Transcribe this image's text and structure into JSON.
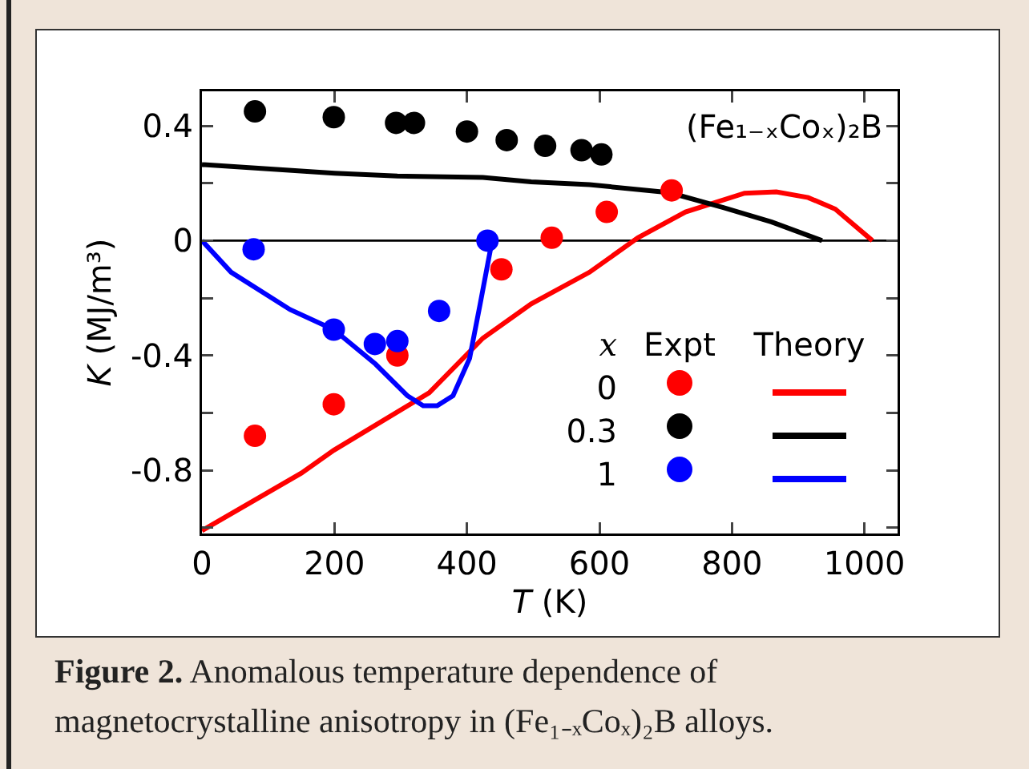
{
  "chart_data": {
    "type": "scatter",
    "xlabel": "T (K)",
    "ylabel": "K (MJ/m³)",
    "xlim": [
      0,
      1050
    ],
    "xticks": [
      0,
      200,
      400,
      600,
      800,
      1000
    ],
    "ylim": [
      -1.02,
      0.52
    ],
    "yticks": [
      {
        "value": -1.0,
        "label": null
      },
      -0.8,
      {
        "value": -0.6,
        "label": null
      },
      -0.4,
      {
        "value": -0.2,
        "label": null
      },
      0,
      {
        "value": 0.2,
        "label": null
      },
      0.4
    ],
    "grid": false,
    "legend": "bottom right",
    "legend_title": "x",
    "marker": "circle",
    "line_style": "solid",
    "ref_lines": [
      {
        "axis": "y",
        "value": 0,
        "color": "#000000"
      }
    ],
    "annotations": [
      "(Fe₁₋ₓCoₓ)₂B",
      "Expt",
      "Theory",
      "Figure 2. Anomalous temperature dependence of magnetocrystalline anisotropy in (Fe₁₋ₓCoₓ)₂B alloys."
    ],
    "series": [
      {
        "name": "0",
        "color": "#ff0000",
        "x": [
          80,
          199,
          295,
          452,
          528,
          611,
          709
        ],
        "values": [
          -0.68,
          -0.57,
          -0.4,
          -0.1,
          0.01,
          0.1,
          0.175
        ]
      },
      {
        "name": "0.3",
        "color": "#000000",
        "x": [
          80,
          199,
          293,
          320,
          400,
          460,
          518,
          573,
          603
        ],
        "values": [
          0.45,
          0.43,
          0.41,
          0.41,
          0.38,
          0.35,
          0.33,
          0.315,
          0.3
        ]
      },
      {
        "name": "1",
        "color": "#0000ff",
        "x": [
          78,
          199,
          261,
          295,
          358,
          431
        ],
        "values": [
          -0.03,
          -0.31,
          -0.36,
          -0.35,
          -0.245,
          0.0
        ]
      },
      {
        "type": "line",
        "marker": "none",
        "color": "#ff0000",
        "x": [
          0,
          150,
          199,
          343,
          424,
          497,
          585,
          658,
          730,
          819,
          867,
          915,
          956,
          1012
        ],
        "values": [
          -1.01,
          -0.81,
          -0.73,
          -0.53,
          -0.34,
          -0.22,
          -0.11,
          0.01,
          0.1,
          0.165,
          0.17,
          0.15,
          0.11,
          0.0
        ]
      },
      {
        "type": "line",
        "marker": "none",
        "color": "#000000",
        "x": [
          0,
          200,
          295,
          424,
          497,
          585,
          706,
          787,
          860,
          936
        ],
        "values": [
          0.265,
          0.235,
          0.225,
          0.22,
          0.205,
          0.195,
          0.167,
          0.115,
          0.065,
          0.0
        ]
      },
      {
        "type": "line",
        "marker": "none",
        "color": "#0000ff",
        "x": [
          0,
          44,
          133,
          199,
          262,
          310,
          334,
          355,
          379,
          404,
          420,
          438
        ],
        "values": [
          0.0,
          -0.11,
          -0.24,
          -0.31,
          -0.43,
          -0.54,
          -0.575,
          -0.575,
          -0.54,
          -0.41,
          -0.22,
          0.0
        ]
      }
    ]
  }
}
